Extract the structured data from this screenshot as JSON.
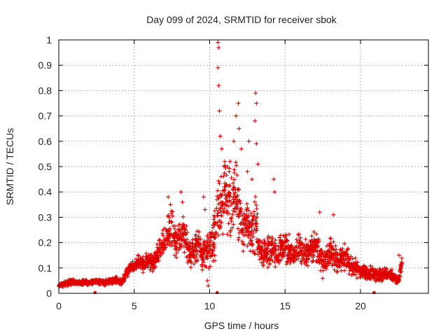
{
  "chart_data": {
    "type": "scatter",
    "title": "Day 099 of 2024, SRMTID for receiver sbok",
    "xlabel": "GPS time / hours",
    "ylabel": "SRMTID / TECUs",
    "xlim": [
      0,
      24.5
    ],
    "ylim": [
      0,
      1
    ],
    "x_ticks": [
      "0",
      "5",
      "10",
      "15",
      "20"
    ],
    "x_tick_values": [
      0,
      5,
      10,
      15,
      20
    ],
    "y_ticks": [
      "0",
      "0.1",
      "0.2",
      "0.3",
      "0.4",
      "0.5",
      "0.6",
      "0.7",
      "0.8",
      "0.9",
      "1"
    ],
    "y_tick_values": [
      0,
      0.1,
      0.2,
      0.3,
      0.4,
      0.5,
      0.6,
      0.7,
      0.8,
      0.9,
      1
    ],
    "grid": true,
    "marker": "+",
    "color": "#e00000",
    "baseline_markers_x": [
      2.4,
      10.5,
      20.9
    ],
    "series": [
      {
        "name": "SRMTID",
        "x": [
          0.0,
          0.25,
          0.5,
          0.75,
          1.0,
          1.25,
          1.5,
          1.75,
          2.0,
          2.25,
          2.5,
          2.75,
          3.0,
          3.25,
          3.5,
          3.75,
          4.0,
          4.25,
          4.5,
          4.75,
          5.0,
          5.25,
          5.5,
          5.75,
          6.0,
          6.25,
          6.5,
          6.75,
          7.0,
          7.25,
          7.5,
          7.75,
          8.0,
          8.25,
          8.5,
          8.75,
          9.0,
          9.25,
          9.5,
          9.75,
          10.0,
          10.25,
          10.5,
          10.75,
          11.0,
          11.25,
          11.5,
          11.75,
          12.0,
          12.25,
          12.5,
          12.75,
          13.0,
          13.25,
          13.5,
          13.75,
          14.0,
          14.25,
          14.5,
          14.75,
          15.0,
          15.25,
          15.5,
          15.75,
          16.0,
          16.25,
          16.5,
          16.75,
          17.0,
          17.25,
          17.5,
          17.75,
          18.0,
          18.25,
          18.5,
          18.75,
          19.0,
          19.25,
          19.5,
          19.75,
          20.0,
          20.25,
          20.5,
          20.75,
          21.0,
          21.25,
          21.5,
          21.75,
          22.0,
          22.25,
          22.5,
          22.75
        ],
        "center": [
          0.03,
          0.035,
          0.04,
          0.045,
          0.045,
          0.04,
          0.042,
          0.045,
          0.04,
          0.045,
          0.05,
          0.045,
          0.04,
          0.045,
          0.05,
          0.055,
          0.045,
          0.05,
          0.08,
          0.1,
          0.11,
          0.12,
          0.11,
          0.12,
          0.13,
          0.12,
          0.15,
          0.18,
          0.2,
          0.24,
          0.25,
          0.2,
          0.22,
          0.25,
          0.2,
          0.15,
          0.18,
          0.2,
          0.15,
          0.16,
          0.18,
          0.2,
          0.3,
          0.35,
          0.4,
          0.38,
          0.35,
          0.4,
          0.3,
          0.25,
          0.28,
          0.22,
          0.3,
          0.2,
          0.15,
          0.16,
          0.18,
          0.17,
          0.15,
          0.17,
          0.18,
          0.16,
          0.15,
          0.17,
          0.18,
          0.15,
          0.16,
          0.18,
          0.2,
          0.15,
          0.12,
          0.14,
          0.16,
          0.14,
          0.13,
          0.14,
          0.15,
          0.12,
          0.1,
          0.1,
          0.08,
          0.09,
          0.07,
          0.08,
          0.07,
          0.08,
          0.07,
          0.08,
          0.07,
          0.06,
          0.05,
          0.12
        ],
        "spread": [
          0.01,
          0.012,
          0.015,
          0.015,
          0.015,
          0.012,
          0.015,
          0.015,
          0.012,
          0.015,
          0.015,
          0.015,
          0.012,
          0.015,
          0.015,
          0.018,
          0.015,
          0.015,
          0.025,
          0.03,
          0.03,
          0.035,
          0.04,
          0.04,
          0.05,
          0.05,
          0.06,
          0.07,
          0.08,
          0.1,
          0.1,
          0.09,
          0.1,
          0.1,
          0.09,
          0.07,
          0.08,
          0.09,
          0.08,
          0.08,
          0.1,
          0.12,
          0.2,
          0.18,
          0.2,
          0.2,
          0.18,
          0.2,
          0.17,
          0.14,
          0.15,
          0.13,
          0.18,
          0.1,
          0.07,
          0.08,
          0.09,
          0.08,
          0.07,
          0.08,
          0.09,
          0.08,
          0.07,
          0.08,
          0.09,
          0.08,
          0.08,
          0.09,
          0.1,
          0.08,
          0.07,
          0.08,
          0.08,
          0.07,
          0.07,
          0.07,
          0.07,
          0.06,
          0.05,
          0.05,
          0.04,
          0.04,
          0.03,
          0.04,
          0.03,
          0.04,
          0.03,
          0.03,
          0.03,
          0.03,
          0.02,
          0.05
        ]
      }
    ],
    "peaks": [
      {
        "x": 7.25,
        "y": 0.38
      },
      {
        "x": 7.4,
        "y": 0.35
      },
      {
        "x": 8.1,
        "y": 0.4
      },
      {
        "x": 8.2,
        "y": 0.36
      },
      {
        "x": 9.6,
        "y": 0.38
      },
      {
        "x": 9.7,
        "y": 0.33
      },
      {
        "x": 10.55,
        "y": 0.99
      },
      {
        "x": 10.6,
        "y": 0.97
      },
      {
        "x": 10.55,
        "y": 0.89
      },
      {
        "x": 10.6,
        "y": 0.82
      },
      {
        "x": 10.65,
        "y": 0.72
      },
      {
        "x": 10.7,
        "y": 0.62
      },
      {
        "x": 10.8,
        "y": 0.57
      },
      {
        "x": 11.0,
        "y": 0.52
      },
      {
        "x": 11.3,
        "y": 0.48
      },
      {
        "x": 11.6,
        "y": 0.6
      },
      {
        "x": 11.75,
        "y": 0.7
      },
      {
        "x": 11.9,
        "y": 0.75
      },
      {
        "x": 11.95,
        "y": 0.65
      },
      {
        "x": 12.1,
        "y": 0.57
      },
      {
        "x": 12.5,
        "y": 0.48
      },
      {
        "x": 12.6,
        "y": 0.6
      },
      {
        "x": 12.8,
        "y": 0.45
      },
      {
        "x": 13.05,
        "y": 0.79
      },
      {
        "x": 13.1,
        "y": 0.75
      },
      {
        "x": 13.0,
        "y": 0.68
      },
      {
        "x": 13.1,
        "y": 0.59
      },
      {
        "x": 13.2,
        "y": 0.51
      },
      {
        "x": 14.25,
        "y": 0.45
      },
      {
        "x": 14.3,
        "y": 0.4
      },
      {
        "x": 17.3,
        "y": 0.32
      },
      {
        "x": 18.2,
        "y": 0.31
      },
      {
        "x": 9.85,
        "y": 0.05
      },
      {
        "x": 9.9,
        "y": 0.03
      },
      {
        "x": 21.6,
        "y": 0.1
      },
      {
        "x": 22.55,
        "y": 0.15
      }
    ]
  }
}
